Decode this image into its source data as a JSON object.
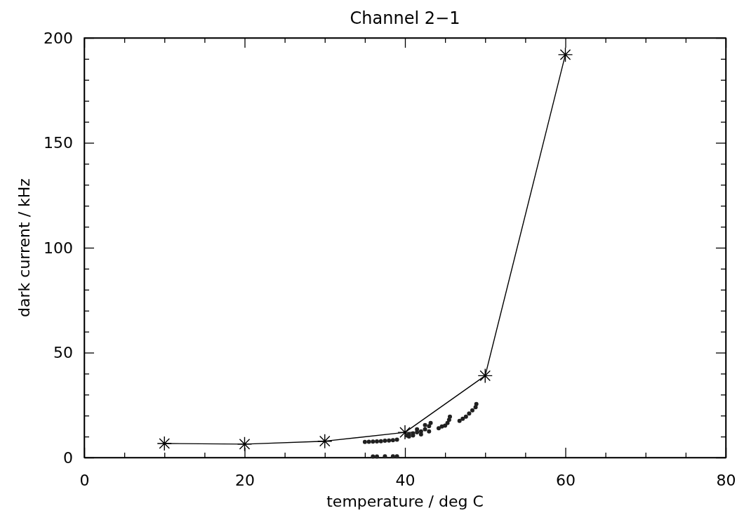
{
  "chart_data": {
    "type": "scatter",
    "title": "Channel 2−1",
    "xlabel": "temperature / deg C",
    "ylabel": "dark current / kHz",
    "xlim": [
      0,
      80
    ],
    "xticks": [
      0,
      {
        "value": 5,
        "label": null
      },
      {
        "value": 10,
        "label": null
      },
      {
        "value": 15,
        "label": null
      },
      20,
      {
        "value": 25,
        "label": null
      },
      {
        "value": 30,
        "label": null
      },
      {
        "value": 35,
        "label": null
      },
      40,
      {
        "value": 45,
        "label": null
      },
      {
        "value": 50,
        "label": null
      },
      {
        "value": 55,
        "label": null
      },
      60,
      {
        "value": 65,
        "label": null
      },
      {
        "value": 70,
        "label": null
      },
      {
        "value": 75,
        "label": null
      },
      80
    ],
    "ylim": [
      0,
      200
    ],
    "yticks": [
      0,
      {
        "value": 10,
        "label": null
      },
      {
        "value": 20,
        "label": null
      },
      {
        "value": 30,
        "label": null
      },
      {
        "value": 40,
        "label": null
      },
      50,
      {
        "value": 60,
        "label": null
      },
      {
        "value": 70,
        "label": null
      },
      {
        "value": 80,
        "label": null
      },
      {
        "value": 90,
        "label": null
      },
      100,
      {
        "value": 110,
        "label": null
      },
      {
        "value": 120,
        "label": null
      },
      {
        "value": 130,
        "label": null
      },
      {
        "value": 140,
        "label": null
      },
      150,
      {
        "value": 160,
        "label": null
      },
      {
        "value": 170,
        "label": null
      },
      {
        "value": 180,
        "label": null
      },
      {
        "value": 190,
        "label": null
      },
      200
    ],
    "grid": false,
    "series": [
      {
        "type": "line",
        "color": "#000000",
        "marker": "cross",
        "x": [
          10,
          20,
          30,
          40,
          50,
          60
        ],
        "values": [
          6.7,
          6.4,
          7.8,
          12,
          39,
          192
        ]
      },
      {
        "color": "#202020",
        "marker": "circle",
        "x": [
          35,
          35.5,
          36,
          36.5,
          37,
          37.5,
          38,
          38.5,
          39,
          36,
          36.5,
          37.5,
          38.5,
          39,
          40.2,
          40.5,
          41,
          41.5,
          42,
          42.5,
          43,
          41,
          42,
          43,
          41.5,
          42.5,
          43.2,
          40.5,
          44.2,
          44.6,
          45,
          45.3,
          45.5,
          45.6,
          46.8,
          47.2,
          47.6,
          48,
          48.4,
          48.8,
          48.9
        ],
        "values": [
          7.4,
          7.5,
          7.6,
          7.7,
          7.8,
          8,
          8.1,
          8.3,
          8.5,
          0.5,
          0.5,
          0.6,
          0.6,
          0.6,
          10.5,
          11,
          11.5,
          12,
          12.5,
          13.5,
          15,
          10.5,
          11,
          12.5,
          13.5,
          15.5,
          16.5,
          10,
          14,
          14.8,
          15.2,
          16.5,
          18,
          19.5,
          17.5,
          18.5,
          19.5,
          21,
          22.5,
          24,
          25.5
        ]
      }
    ]
  }
}
